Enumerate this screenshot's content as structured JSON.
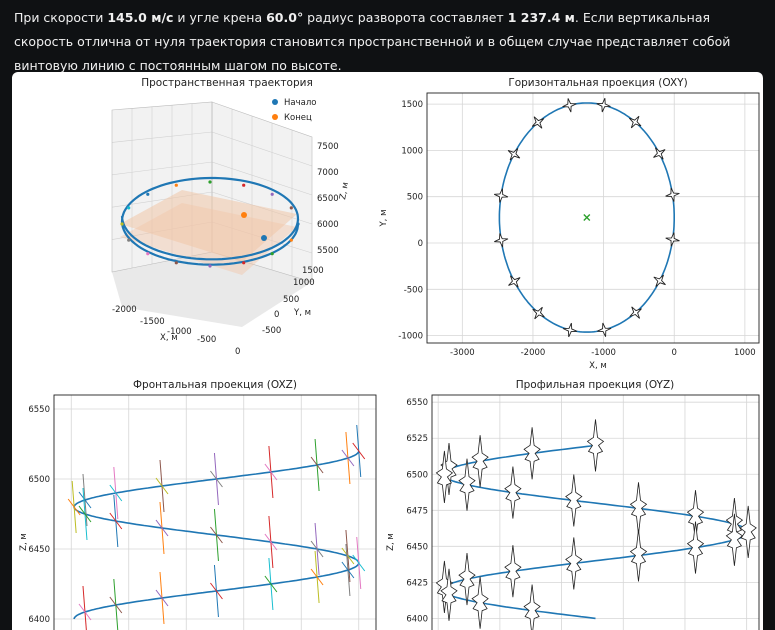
{
  "header": {
    "p1": "При скорости ",
    "speed": "145.0 м/с",
    "p2": " и угле крена ",
    "bank": "60.0°",
    "p3": " радиус разворота составляет ",
    "radius": "1 237.4 м",
    "p4": ". Если вертикальная скорость отлична от нуля траектория становится пространственной и в общем случае представляет собой винтовую линию с постоянным шагом по высоте."
  },
  "chart_data": [
    {
      "type": "line",
      "title": "Пространственная траектория",
      "projection": "3d",
      "legend": {
        "placement": "top-right",
        "entries": [
          {
            "label": "Начало",
            "color": "#1f77b4"
          },
          {
            "label": "Конец",
            "color": "#ff7f0e"
          }
        ]
      },
      "xlabel": "X, м",
      "ylabel": "Y, м",
      "zlabel": "Z, м",
      "xticks": [
        "-2000",
        "-1500",
        "-1000",
        "-500",
        "0"
      ],
      "yticks": [
        "-500",
        "0",
        "500",
        "1000",
        "1500"
      ],
      "zticks": [
        "5500",
        "6000",
        "6500",
        "7000",
        "7500"
      ],
      "center": [
        -1237.4,
        275
      ],
      "radius": 1237.4,
      "z_range": [
        6400,
        6520
      ]
    },
    {
      "type": "line",
      "title": "Горизонтальная проекция (OXY)",
      "xlabel": "X, м",
      "ylabel": "Y, м",
      "xlim": [
        -3500,
        1200
      ],
      "ylim": [
        -1080,
        1620
      ],
      "xticks": [
        -3000,
        -2000,
        -1000,
        0,
        1000
      ],
      "yticks": [
        -1000,
        -500,
        0,
        500,
        1000,
        1500
      ],
      "grid": true,
      "center": [
        -1237.4,
        275
      ],
      "radius": 1237.4,
      "aircraft_markers": 16
    },
    {
      "type": "line",
      "title": "Фронтальная проекция (OXZ)",
      "xlabel": "",
      "ylabel": "Z, м",
      "xlim": [
        -2650,
        150
      ],
      "ylim": [
        6385,
        6560
      ],
      "yticks": [
        6400,
        6450,
        6500,
        6550
      ],
      "grid": true,
      "center_x": -1237.4,
      "radius": 1237.4,
      "z_start": 6520,
      "z_end": 6400,
      "turns": 1.5
    },
    {
      "type": "line",
      "title": "Профильная проекция (OYZ)",
      "xlabel": "",
      "ylabel": "Z, м",
      "xlim": [
        -1050,
        1600
      ],
      "ylim": [
        6385,
        6555
      ],
      "yticks": [
        6400,
        6425,
        6450,
        6475,
        6500,
        6525,
        6550
      ],
      "grid": true,
      "center_y": 275,
      "radius": 1237.4,
      "z_start": 6520,
      "z_end": 6400,
      "turns": 1.5
    }
  ]
}
